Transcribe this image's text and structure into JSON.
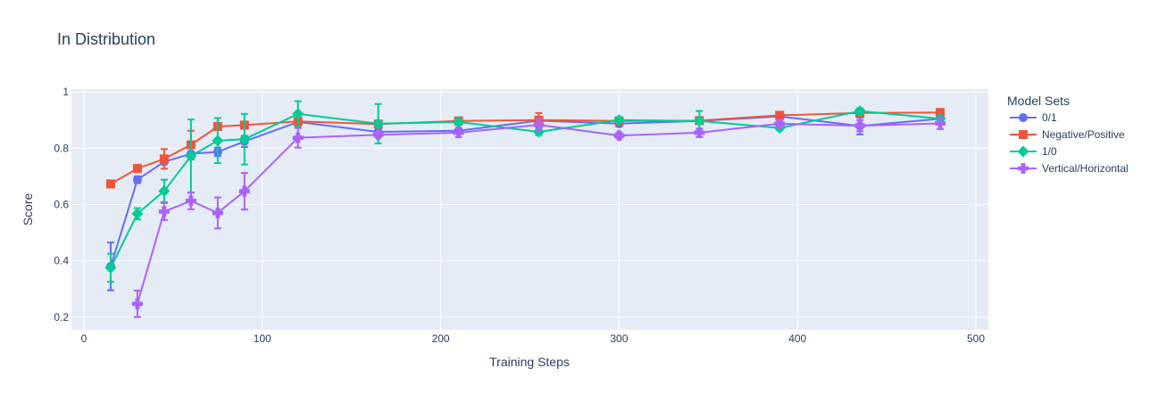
{
  "chart_data": {
    "type": "line",
    "title": "In Distribution",
    "xlabel": "Training Steps",
    "ylabel": "Score",
    "xlim": [
      -7,
      507
    ],
    "ylim": [
      0.155,
      1.01
    ],
    "xticks": [
      0,
      100,
      200,
      300,
      400,
      500
    ],
    "yticks": [
      0.2,
      0.4,
      0.6,
      0.8,
      1
    ],
    "ytick_labels": [
      "0.2",
      "0.4",
      "0.6",
      "0.8",
      "1"
    ],
    "grid": true,
    "plot_background": "#e5ecf6",
    "legend": {
      "title": "Model Sets",
      "placement": "right"
    },
    "series": [
      {
        "name": "0/1",
        "color": "#636efa",
        "marker": "circle",
        "points": [
          {
            "x": 15,
            "y": 0.38,
            "err": 0.085
          },
          {
            "x": 30,
            "y": 0.688,
            "err": 0.012
          },
          {
            "x": 45,
            "y": 0.752,
            "err": 0.008
          },
          {
            "x": 60,
            "y": 0.78,
            "err": 0.02
          },
          {
            "x": 75,
            "y": 0.787,
            "err": 0.015
          },
          {
            "x": 90,
            "y": 0.824,
            "err": 0.02
          },
          {
            "x": 120,
            "y": 0.893,
            "err": 0.008
          },
          {
            "x": 165,
            "y": 0.858,
            "err": 0.01
          },
          {
            "x": 210,
            "y": 0.862,
            "err": 0.01
          },
          {
            "x": 255,
            "y": 0.898,
            "err": 0.01
          },
          {
            "x": 300,
            "y": 0.887,
            "err": 0.01
          },
          {
            "x": 345,
            "y": 0.897,
            "err": 0.01
          },
          {
            "x": 390,
            "y": 0.913,
            "err": 0.01
          },
          {
            "x": 435,
            "y": 0.879,
            "err": 0.03
          },
          {
            "x": 480,
            "y": 0.905,
            "err": 0.01
          }
        ]
      },
      {
        "name": "Negative/Positive",
        "color": "#ef553b",
        "marker": "square",
        "points": [
          {
            "x": 15,
            "y": 0.673,
            "err": 0.005
          },
          {
            "x": 30,
            "y": 0.728,
            "err": 0.01
          },
          {
            "x": 45,
            "y": 0.762,
            "err": 0.035
          },
          {
            "x": 60,
            "y": 0.812,
            "err": 0.05
          },
          {
            "x": 75,
            "y": 0.877,
            "err": 0.01
          },
          {
            "x": 90,
            "y": 0.882,
            "err": 0.008
          },
          {
            "x": 120,
            "y": 0.895,
            "err": 0.008
          },
          {
            "x": 165,
            "y": 0.886,
            "err": 0.008
          },
          {
            "x": 210,
            "y": 0.897,
            "err": 0.008
          },
          {
            "x": 255,
            "y": 0.9,
            "err": 0.025
          },
          {
            "x": 300,
            "y": 0.897,
            "err": 0.008
          },
          {
            "x": 345,
            "y": 0.898,
            "err": 0.008
          },
          {
            "x": 390,
            "y": 0.917,
            "err": 0.008
          },
          {
            "x": 435,
            "y": 0.925,
            "err": 0.008
          },
          {
            "x": 480,
            "y": 0.927,
            "err": 0.005
          }
        ]
      },
      {
        "name": "1/0",
        "color": "#00cc96",
        "marker": "diamond",
        "points": [
          {
            "x": 15,
            "y": 0.375,
            "err": 0.05
          },
          {
            "x": 30,
            "y": 0.567,
            "err": 0.02
          },
          {
            "x": 45,
            "y": 0.648,
            "err": 0.04
          },
          {
            "x": 60,
            "y": 0.772,
            "err": 0.13
          },
          {
            "x": 75,
            "y": 0.827,
            "err": 0.08
          },
          {
            "x": 90,
            "y": 0.832,
            "err": 0.09
          },
          {
            "x": 120,
            "y": 0.922,
            "err": 0.045
          },
          {
            "x": 165,
            "y": 0.887,
            "err": 0.07
          },
          {
            "x": 210,
            "y": 0.893,
            "err": 0.01
          },
          {
            "x": 255,
            "y": 0.858,
            "err": 0.012
          },
          {
            "x": 300,
            "y": 0.9,
            "err": 0.01
          },
          {
            "x": 345,
            "y": 0.897,
            "err": 0.035
          },
          {
            "x": 390,
            "y": 0.872,
            "err": 0.008
          },
          {
            "x": 435,
            "y": 0.932,
            "err": 0.01
          },
          {
            "x": 480,
            "y": 0.905,
            "err": 0.01
          }
        ]
      },
      {
        "name": "Vertical/Horizontal",
        "color": "#ab63fa",
        "marker": "cross",
        "points": [
          {
            "x": 30,
            "y": 0.247,
            "err": 0.047
          },
          {
            "x": 45,
            "y": 0.575,
            "err": 0.03
          },
          {
            "x": 60,
            "y": 0.613,
            "err": 0.03
          },
          {
            "x": 75,
            "y": 0.57,
            "err": 0.055
          },
          {
            "x": 90,
            "y": 0.647,
            "err": 0.065
          },
          {
            "x": 120,
            "y": 0.837,
            "err": 0.035
          },
          {
            "x": 165,
            "y": 0.848,
            "err": 0.01
          },
          {
            "x": 210,
            "y": 0.855,
            "err": 0.015
          },
          {
            "x": 255,
            "y": 0.883,
            "err": 0.02
          },
          {
            "x": 300,
            "y": 0.845,
            "err": 0.01
          },
          {
            "x": 345,
            "y": 0.855,
            "err": 0.015
          },
          {
            "x": 390,
            "y": 0.887,
            "err": 0.01
          },
          {
            "x": 435,
            "y": 0.88,
            "err": 0.02
          },
          {
            "x": 480,
            "y": 0.888,
            "err": 0.02
          }
        ]
      }
    ]
  }
}
